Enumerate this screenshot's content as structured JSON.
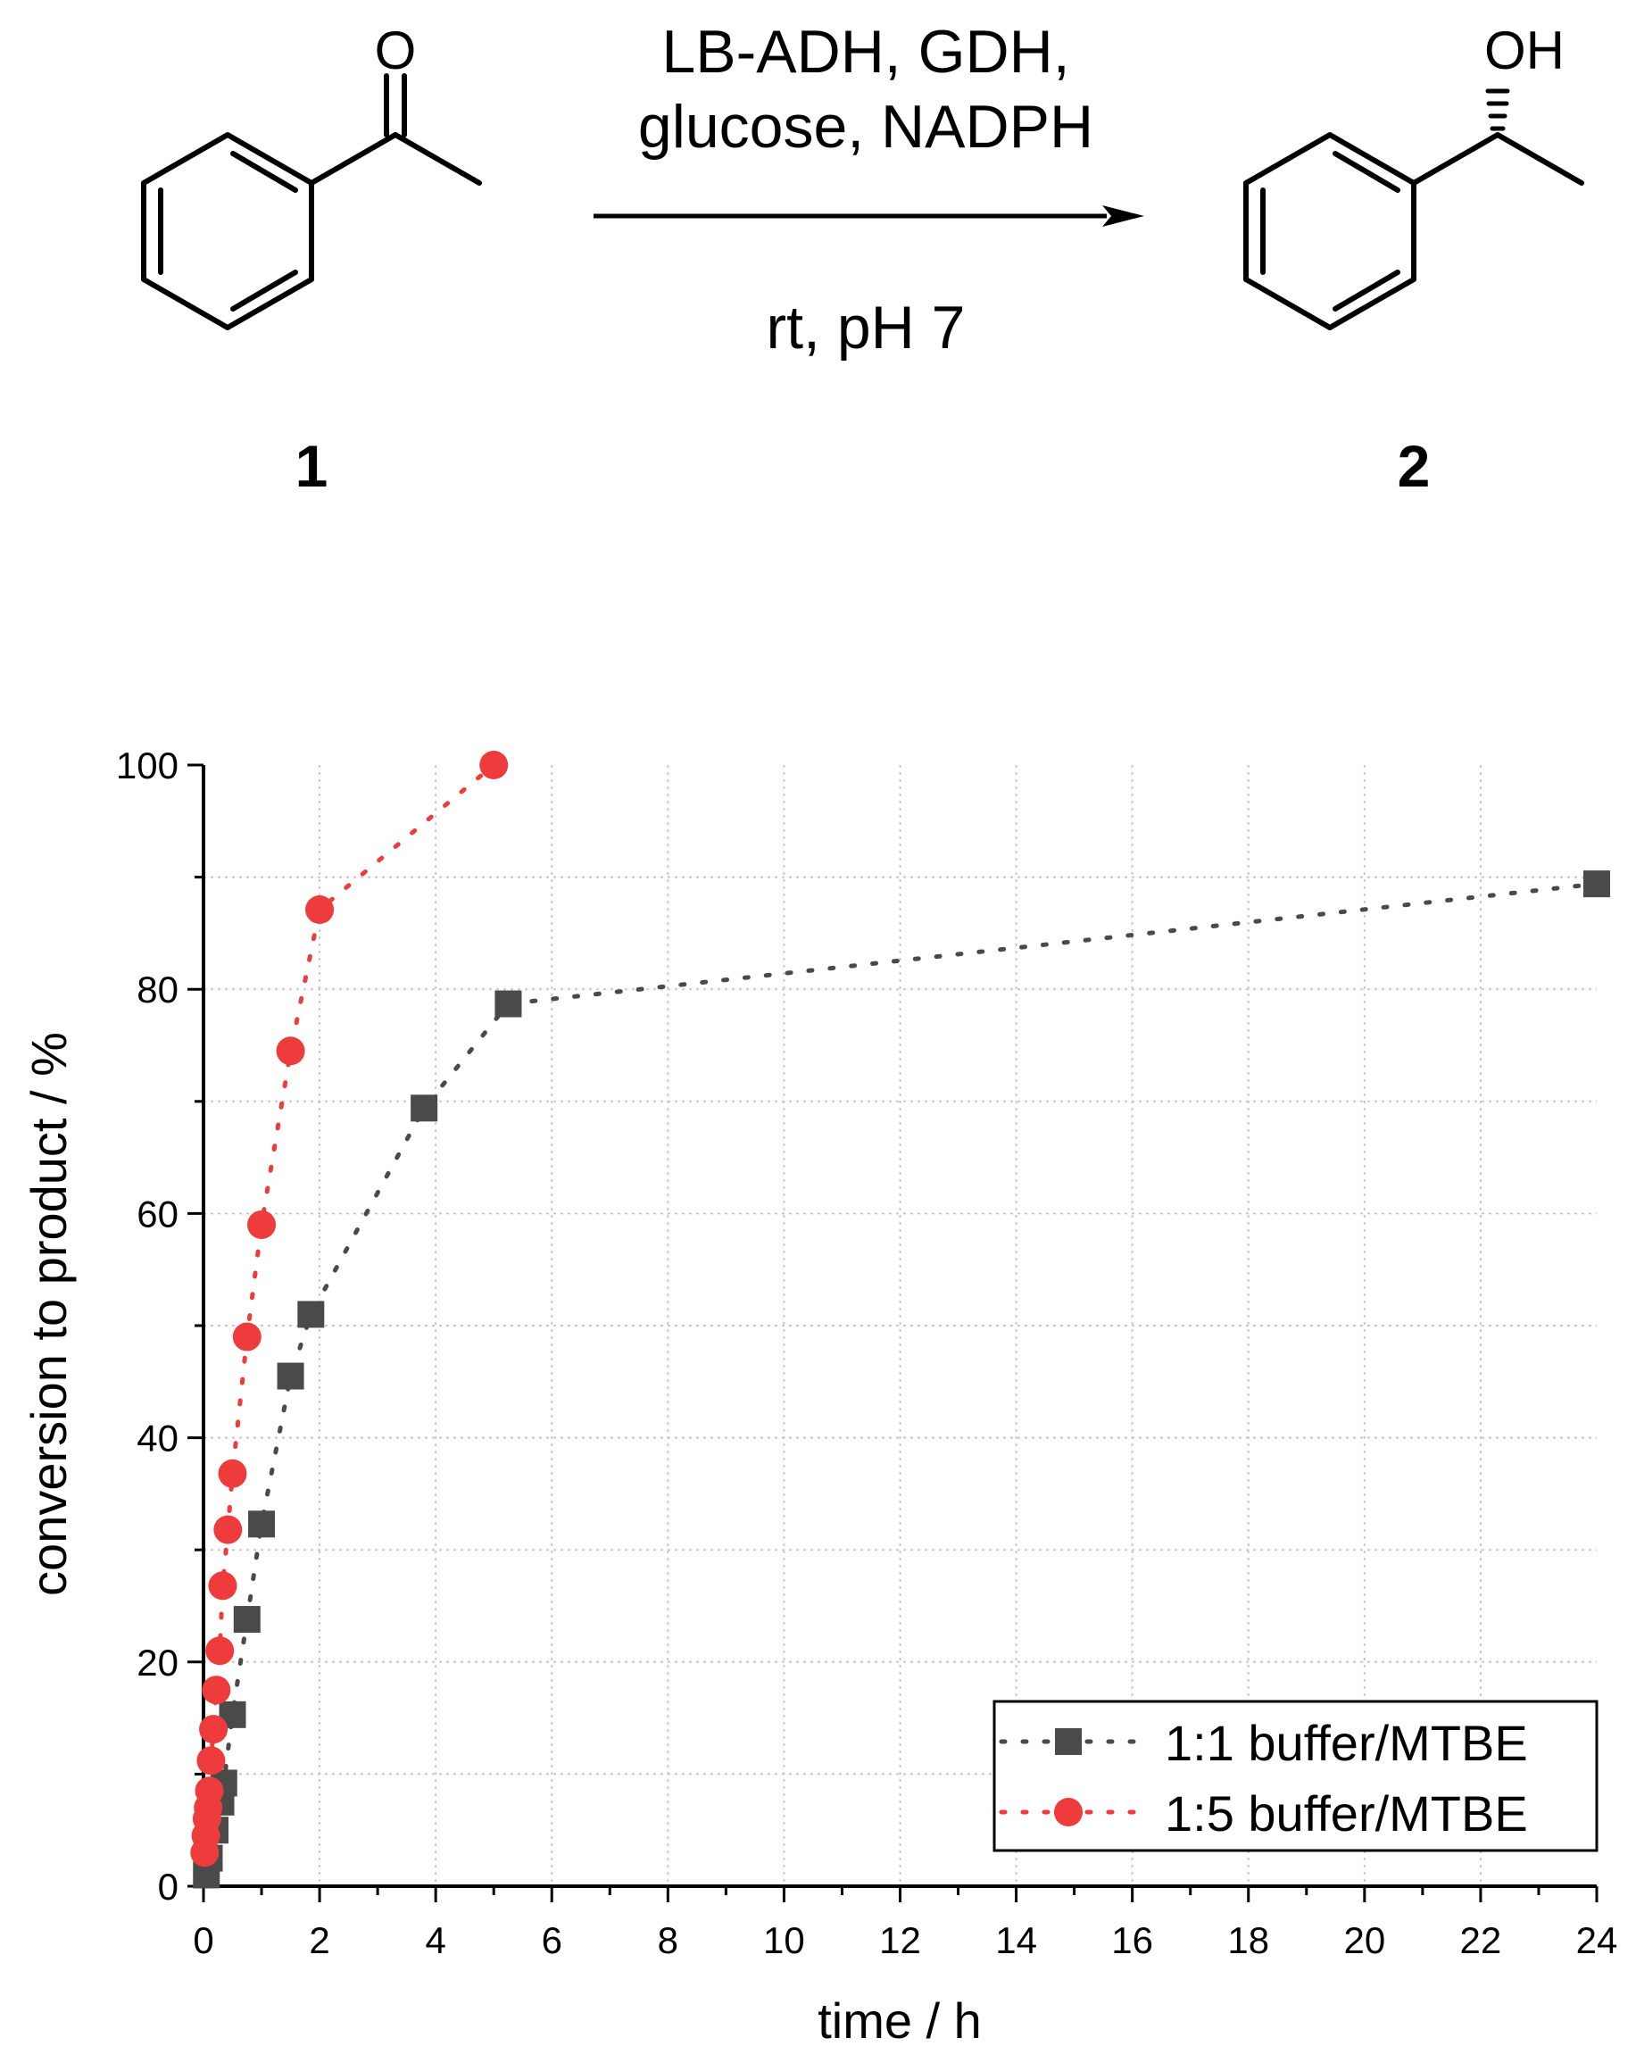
{
  "scheme": {
    "reactant_label": "1",
    "product_label": "2",
    "reactant_carbonyl_atom": "O",
    "product_hydroxyl": "OH",
    "reagents_line1": "LB-ADH, GDH,",
    "reagents_line2": "glucose, NADPH",
    "conditions": "rt, pH 7"
  },
  "chart_data": {
    "type": "scatter",
    "title": "",
    "xlabel": "time / h",
    "ylabel": "conversion to product / %",
    "xlim": [
      0,
      24
    ],
    "ylim": [
      0,
      100
    ],
    "x_ticks": [
      "0",
      "2",
      "4",
      "6",
      "8",
      "10",
      "12",
      "14",
      "16",
      "18",
      "20",
      "22",
      "24"
    ],
    "y_ticks": [
      "0",
      "20",
      "40",
      "60",
      "80",
      "100"
    ],
    "grid": true,
    "legend_position": "bottom-right",
    "series": [
      {
        "name": "1:1 buffer/MTBE",
        "marker": "square",
        "line_style": "dotted",
        "color": "#4a4a4a",
        "x": [
          0.05,
          0.1,
          0.2,
          0.3,
          0.35,
          0.5,
          0.75,
          1.0,
          1.5,
          1.85,
          3.8,
          5.25,
          24.0
        ],
        "y": [
          1.0,
          2.5,
          5.0,
          7.5,
          9.2,
          15.3,
          23.8,
          32.3,
          45.5,
          51.0,
          69.4,
          78.7,
          89.4
        ]
      },
      {
        "name": "1:5 buffer/MTBE",
        "marker": "circle",
        "line_style": "dotted",
        "color": "#ee3b3b",
        "x": [
          0.02,
          0.04,
          0.06,
          0.08,
          0.1,
          0.13,
          0.17,
          0.22,
          0.28,
          0.33,
          0.42,
          0.5,
          0.75,
          1.0,
          1.5,
          2.0,
          5.0
        ],
        "y": [
          3.0,
          4.5,
          6.0,
          7.0,
          8.5,
          11.2,
          14.0,
          17.5,
          21.0,
          26.8,
          31.8,
          36.8,
          49.0,
          59.0,
          74.5,
          87.1,
          100.0
        ]
      }
    ]
  }
}
